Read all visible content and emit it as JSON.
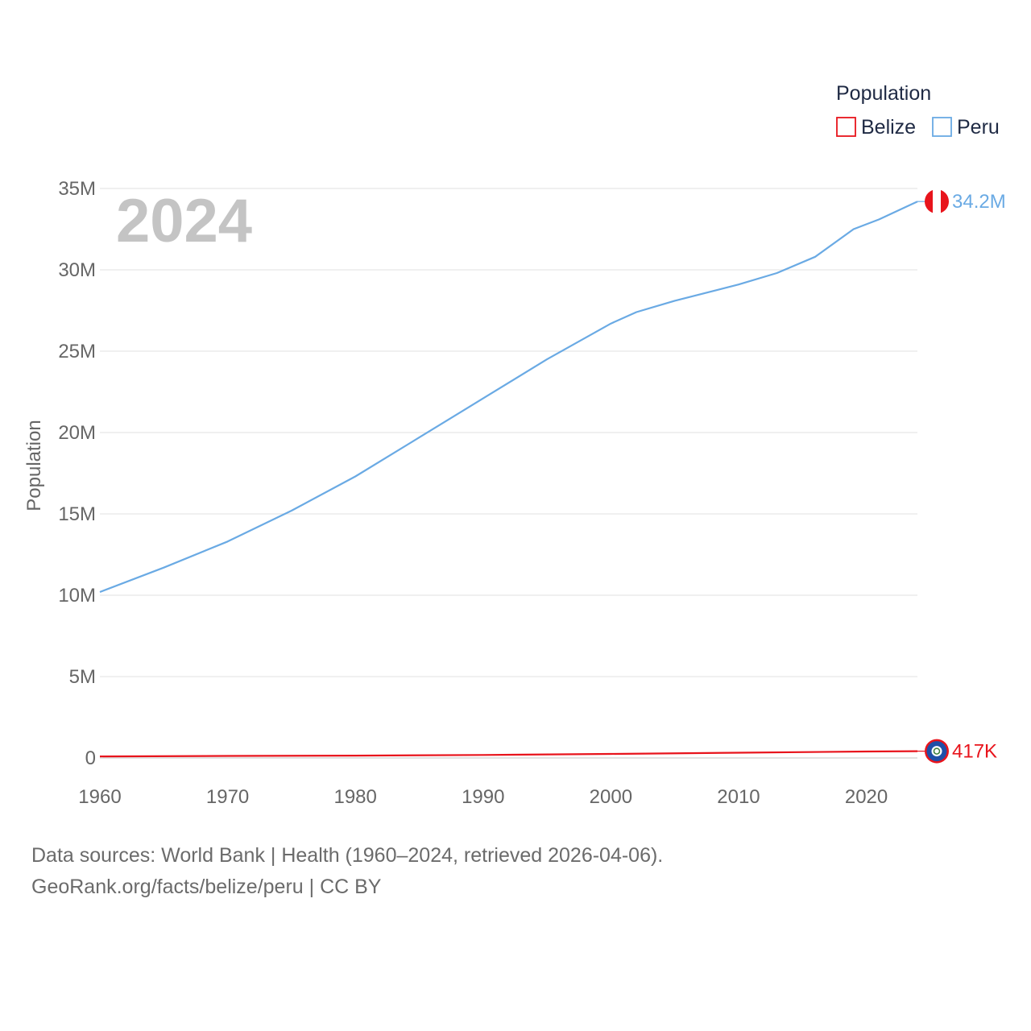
{
  "chart_data": {
    "type": "line",
    "title": "",
    "highlight_year": "2024",
    "ylabel": "Population",
    "xlabel": "",
    "xlim": [
      1960,
      2024
    ],
    "ylim": [
      0,
      35000000
    ],
    "x_ticks": [
      1960,
      1970,
      1980,
      1990,
      2000,
      2010,
      2020
    ],
    "y_ticks": [
      {
        "value": 0,
        "label": "0"
      },
      {
        "value": 5000000,
        "label": "5M"
      },
      {
        "value": 10000000,
        "label": "10M"
      },
      {
        "value": 15000000,
        "label": "15M"
      },
      {
        "value": 20000000,
        "label": "20M"
      },
      {
        "value": 25000000,
        "label": "25M"
      },
      {
        "value": 30000000,
        "label": "30M"
      },
      {
        "value": 35000000,
        "label": "35M"
      }
    ],
    "grid": true,
    "legend": {
      "title": "Population",
      "position": "top-right",
      "entries": [
        {
          "name": "Belize",
          "color": "#e8141c"
        },
        {
          "name": "Peru",
          "color": "#6aaae4"
        }
      ]
    },
    "series": [
      {
        "name": "Peru",
        "color": "#6aaae4",
        "end_label": "34.2M",
        "flag": "peru-flag",
        "x": [
          1960,
          1965,
          1970,
          1975,
          1980,
          1985,
          1990,
          1995,
          2000,
          2002,
          2005,
          2008,
          2010,
          2013,
          2016,
          2019,
          2021,
          2024
        ],
        "y": [
          10200000,
          11700000,
          13300000,
          15200000,
          17300000,
          19700000,
          22100000,
          24500000,
          26700000,
          27400000,
          28100000,
          28700000,
          29100000,
          29800000,
          30800000,
          32500000,
          33100000,
          34200000
        ]
      },
      {
        "name": "Belize",
        "color": "#e8141c",
        "end_label": "417K",
        "flag": "belize-flag",
        "x": [
          1960,
          1970,
          1980,
          1990,
          2000,
          2010,
          2020,
          2024
        ],
        "y": [
          92000,
          122000,
          145000,
          184000,
          247000,
          322000,
          394000,
          417000
        ]
      }
    ]
  },
  "source": {
    "line1": "Data sources: World Bank | Health (1960–2024, retrieved 2026-04-06).",
    "line2": "GeoRank.org/facts/belize/peru | CC BY"
  }
}
